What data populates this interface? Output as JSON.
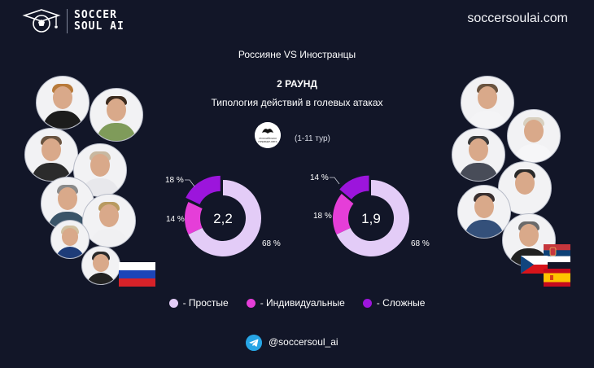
{
  "header": {
    "brand_line1": "SOCCER",
    "brand_line2": "SOUL AI",
    "site": "soccersoulai.com"
  },
  "title": "Россияне VS Иностранцы",
  "round": "2 РАУНД",
  "subtitle": "Типология действий в голевых атаках",
  "league_logo_text": [
    "РОССИЙСКАЯ",
    "ПРЕМЬЕР-ЛИГА"
  ],
  "period": "(1-11 тур)",
  "colors": {
    "simple": "#e3ccf7",
    "individual": "#e53ed8",
    "complex": "#9c15dc",
    "background": "#121628"
  },
  "chart_data": [
    {
      "type": "pie",
      "center_label": "2,2",
      "labels": [
        "- Простые",
        "- Индивидуальные",
        "- Сложные"
      ],
      "values": [
        68,
        14,
        18
      ],
      "value_labels": [
        "68 %",
        "14 %",
        "18 %"
      ],
      "legend": "bottom"
    },
    {
      "type": "pie",
      "center_label": "1,9",
      "labels": [
        "- Простые",
        "- Индивидуальные",
        "- Сложные"
      ],
      "values": [
        68,
        18,
        14
      ],
      "value_labels": [
        "68 %",
        "18 %",
        "14 %"
      ],
      "legend": "bottom"
    }
  ],
  "legend": [
    {
      "label": "- Простые",
      "color": "#e3ccf7"
    },
    {
      "label": "- Индивидуальные",
      "color": "#e53ed8"
    },
    {
      "label": "- Сложные",
      "color": "#9c15dc"
    }
  ],
  "footer": {
    "handle": "@soccersoul_ai",
    "icon": "telegram-icon"
  },
  "left_group": {
    "flag": "russia-flag",
    "avatars": [
      "coach-1",
      "coach-2",
      "coach-3",
      "coach-4",
      "coach-5",
      "coach-6",
      "coach-7",
      "coach-8"
    ]
  },
  "right_group": {
    "flags": [
      "serbia-flag",
      "czech-flag",
      "spain-flag"
    ],
    "avatars": [
      "coach-1",
      "coach-2",
      "coach-3",
      "coach-4",
      "coach-5",
      "coach-6",
      "coach-7"
    ]
  }
}
